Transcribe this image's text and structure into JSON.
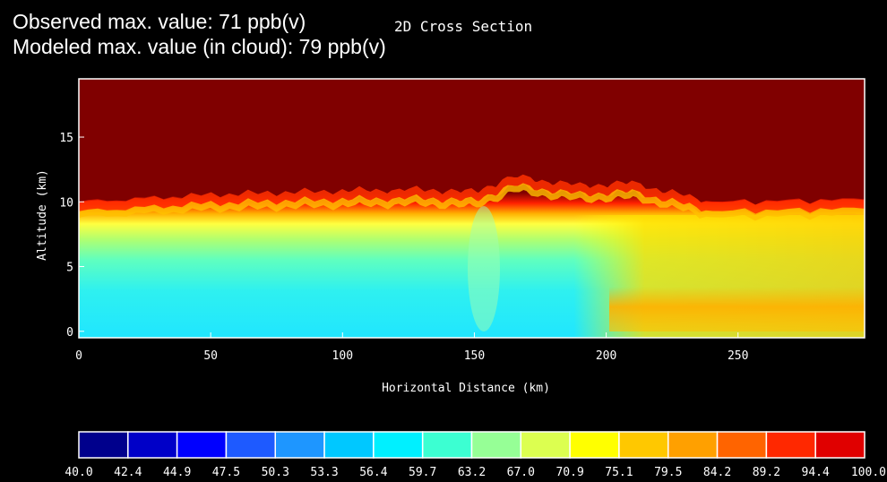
{
  "annotations": {
    "observed": "Observed max. value: 71 ppb(v)",
    "modeled": "Modeled max. value (in cloud): 79 ppb(v)"
  },
  "chart_data": {
    "type": "heatmap",
    "title": "2D Cross Section",
    "xlabel": "Horizontal Distance (km)",
    "ylabel": "Altitude (km)",
    "xlim": [
      0,
      298
    ],
    "ylim": [
      -0.5,
      19.5
    ],
    "xticks": [
      "0",
      "50",
      "100",
      "150",
      "200",
      "250"
    ],
    "xtick_values": [
      0,
      50,
      100,
      150,
      200,
      250
    ],
    "yticks": [
      "0",
      "5",
      "10",
      "15"
    ],
    "ytick_values": [
      0,
      5,
      10,
      15
    ],
    "colorbar": {
      "levels": [
        "40.0",
        "42.4",
        "44.9",
        "47.5",
        "50.3",
        "53.3",
        "56.4",
        "59.7",
        "63.2",
        "67.0",
        "70.9",
        "75.1",
        "79.5",
        "84.2",
        "89.2",
        "94.4",
        "100.0"
      ],
      "colors": [
        "#00008c",
        "#0000c8",
        "#0000ff",
        "#1e5aff",
        "#1e96ff",
        "#00c8ff",
        "#00f0ff",
        "#3cffd2",
        "#96ff96",
        "#dcff50",
        "#ffff00",
        "#ffc800",
        "#ffa000",
        "#ff6400",
        "#ff2800",
        "#e00000"
      ]
    },
    "field_description": {
      "high_value_top_color": "#7f0000",
      "tropopause_altitude_km": [
        10.0,
        10.6,
        10.9,
        11.0,
        10.8,
        12.0,
        11.3,
        11.5,
        10.0,
        10.2
      ],
      "tropopause_distance_km": [
        0,
        50,
        100,
        130,
        150,
        165,
        190,
        210,
        240,
        298
      ]
    }
  }
}
